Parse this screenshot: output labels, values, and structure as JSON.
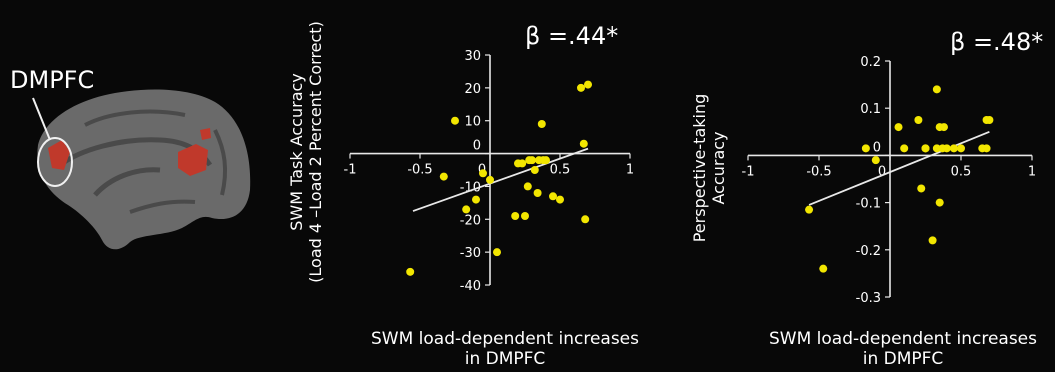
{
  "brain": {
    "roi_label": "DMPFC",
    "colors": {
      "cortex": "#6a6a6a",
      "sulcus": "#4a4a4a",
      "activation": "#c0392b"
    }
  },
  "colors": {
    "background": "#080808",
    "axes": "#e8e8e8",
    "points": "#f2e600",
    "fit_line": "#e8e8e8",
    "text": "#ffffff"
  },
  "chart_data": [
    {
      "type": "scatter",
      "annotation": "β =.44*",
      "title": "",
      "xlabel": [
        "SWM load-dependent increases",
        "in DMPFC"
      ],
      "ylabel": [
        "SWM Task Accuracy",
        "(Load 4 –Load 2 Percent Correct)"
      ],
      "xlim": [
        -1,
        1
      ],
      "ylim": [
        -40,
        30
      ],
      "xticks": [
        -1,
        -0.5,
        0,
        0.5,
        1
      ],
      "xtick_labels": [
        "-1",
        "-0.5",
        "0",
        "0.5",
        "1"
      ],
      "yticks": [
        -40,
        -30,
        -20,
        -10,
        0,
        10,
        20,
        30
      ],
      "ytick_labels": [
        "-40",
        "-30",
        "-20",
        "-10",
        "0",
        "10",
        "20",
        "30"
      ],
      "grid": false,
      "x": [
        -0.57,
        -0.33,
        -0.25,
        -0.17,
        -0.1,
        -0.05,
        0.0,
        0.05,
        0.18,
        0.2,
        0.23,
        0.25,
        0.27,
        0.28,
        0.3,
        0.32,
        0.34,
        0.35,
        0.37,
        0.38,
        0.4,
        0.45,
        0.5,
        0.65,
        0.67,
        0.68,
        0.7
      ],
      "y": [
        -36,
        -7,
        10,
        -17,
        -14,
        -6,
        -8,
        -30,
        -19,
        -3,
        -3,
        -19,
        -10,
        -2,
        -2,
        -5,
        -12,
        -2,
        9,
        -2,
        -2,
        -13,
        -14,
        20,
        3,
        -20,
        21
      ],
      "fit_line": {
        "x": [
          -0.55,
          0.7
        ],
        "y": [
          -17.5,
          1.5
        ]
      }
    },
    {
      "type": "scatter",
      "annotation": "β =.48*",
      "title": "",
      "xlabel": [
        "SWM load-dependent increases",
        "in DMPFC"
      ],
      "ylabel": [
        "Perspective-taking",
        "Accuracy"
      ],
      "xlim": [
        -1,
        1
      ],
      "ylim": [
        -0.3,
        0.2
      ],
      "xticks": [
        -1,
        -0.5,
        0,
        0.5,
        1
      ],
      "xtick_labels": [
        "-1",
        "-0.5",
        "0",
        "0.5",
        "1"
      ],
      "yticks": [
        -0.3,
        -0.2,
        -0.1,
        0,
        0.1,
        0.2
      ],
      "ytick_labels": [
        "-0.3",
        "-0.2",
        "-0.1",
        "0",
        "0.1",
        "0.2"
      ],
      "grid": false,
      "x": [
        -0.57,
        -0.47,
        -0.17,
        -0.1,
        0.06,
        0.1,
        0.2,
        0.22,
        0.25,
        0.25,
        0.3,
        0.33,
        0.33,
        0.35,
        0.35,
        0.37,
        0.38,
        0.4,
        0.45,
        0.5,
        0.65,
        0.68,
        0.68,
        0.7
      ],
      "y": [
        -0.115,
        -0.24,
        0.015,
        -0.01,
        0.06,
        0.015,
        0.075,
        -0.07,
        0.015,
        0.015,
        -0.18,
        0.015,
        0.14,
        0.06,
        -0.1,
        0.015,
        0.06,
        0.015,
        0.015,
        0.015,
        0.015,
        0.075,
        0.015,
        0.075
      ],
      "fit_line": {
        "x": [
          -0.57,
          0.7
        ],
        "y": [
          -0.105,
          0.05
        ]
      }
    }
  ]
}
